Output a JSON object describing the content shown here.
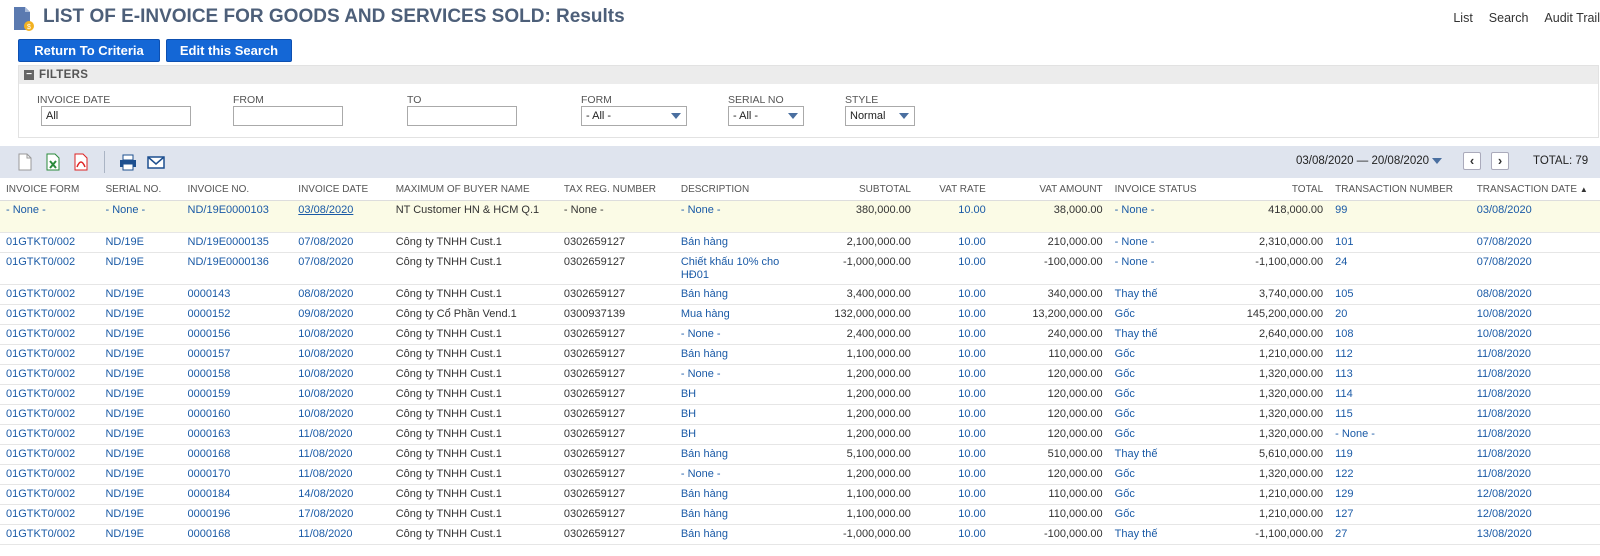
{
  "header": {
    "title": "LIST OF E-INVOICE FOR GOODS AND SERVICES SOLD: Results",
    "links": [
      "List",
      "Search",
      "Audit Trail"
    ]
  },
  "buttons": {
    "return": "Return To Criteria",
    "edit": "Edit this Search"
  },
  "filters": {
    "title": "FILTERS",
    "invoice_date": {
      "label": "INVOICE DATE",
      "value": "All"
    },
    "from": {
      "label": "FROM",
      "value": ""
    },
    "to": {
      "label": "TO",
      "value": ""
    },
    "form": {
      "label": "FORM",
      "value": "- All -"
    },
    "serial_no": {
      "label": "SERIAL NO",
      "value": "- All -"
    },
    "style": {
      "label": "STYLE",
      "value": "Normal"
    }
  },
  "toolbar": {
    "date_range": "03/08/2020 — 20/08/2020",
    "total": "TOTAL: 79",
    "prev": "‹",
    "next": "›"
  },
  "table": {
    "columns": [
      "INVOICE FORM",
      "SERIAL NO.",
      "INVOICE NO.",
      "INVOICE DATE",
      "MAXIMUM OF BUYER NAME",
      "TAX REG. NUMBER",
      "DESCRIPTION",
      "SUBTOTAL",
      "VAT RATE",
      "VAT AMOUNT",
      "INVOICE STATUS",
      "TOTAL",
      "TRANSACTION NUMBER",
      "TRANSACTION DATE"
    ],
    "sort_indicator": "▲",
    "rows": [
      [
        "- None -",
        "- None -",
        "ND/19E0000103",
        "03/08/2020",
        "NT Customer HN & HCM Q.1",
        "- None -",
        "- None -",
        "380,000.00",
        "10.00",
        "38,000.00",
        "- None -",
        "418,000.00",
        "99",
        "03/08/2020"
      ],
      [
        "01GTKT0/002",
        "ND/19E",
        "ND/19E0000135",
        "07/08/2020",
        "Công ty TNHH Cust.1",
        "0302659127",
        "Bán hàng",
        "2,100,000.00",
        "10.00",
        "210,000.00",
        "- None -",
        "2,310,000.00",
        "101",
        "07/08/2020"
      ],
      [
        "01GTKT0/002",
        "ND/19E",
        "ND/19E0000136",
        "07/08/2020",
        "Công ty TNHH Cust.1",
        "0302659127",
        "Chiết khấu 10% cho HĐ01",
        "-1,000,000.00",
        "10.00",
        "-100,000.00",
        "- None -",
        "-1,100,000.00",
        "24",
        "07/08/2020"
      ],
      [
        "01GTKT0/002",
        "ND/19E",
        "0000143",
        "08/08/2020",
        "Công ty TNHH Cust.1",
        "0302659127",
        "Bán hàng",
        "3,400,000.00",
        "10.00",
        "340,000.00",
        "Thay thế",
        "3,740,000.00",
        "105",
        "08/08/2020"
      ],
      [
        "01GTKT0/002",
        "ND/19E",
        "0000152",
        "09/08/2020",
        "Công ty Cổ Phần Vend.1",
        "0300937139",
        "Mua hàng",
        "132,000,000.00",
        "10.00",
        "13,200,000.00",
        "Gốc",
        "145,200,000.00",
        "20",
        "10/08/2020"
      ],
      [
        "01GTKT0/002",
        "ND/19E",
        "0000156",
        "10/08/2020",
        "Công ty TNHH Cust.1",
        "0302659127",
        "- None -",
        "2,400,000.00",
        "10.00",
        "240,000.00",
        "Thay thế",
        "2,640,000.00",
        "108",
        "10/08/2020"
      ],
      [
        "01GTKT0/002",
        "ND/19E",
        "0000157",
        "10/08/2020",
        "Công ty TNHH Cust.1",
        "0302659127",
        "Bán hàng",
        "1,100,000.00",
        "10.00",
        "110,000.00",
        "Gốc",
        "1,210,000.00",
        "112",
        "11/08/2020"
      ],
      [
        "01GTKT0/002",
        "ND/19E",
        "0000158",
        "10/08/2020",
        "Công ty TNHH Cust.1",
        "0302659127",
        "- None -",
        "1,200,000.00",
        "10.00",
        "120,000.00",
        "Gốc",
        "1,320,000.00",
        "113",
        "11/08/2020"
      ],
      [
        "01GTKT0/002",
        "ND/19E",
        "0000159",
        "10/08/2020",
        "Công ty TNHH Cust.1",
        "0302659127",
        "BH",
        "1,200,000.00",
        "10.00",
        "120,000.00",
        "Gốc",
        "1,320,000.00",
        "114",
        "11/08/2020"
      ],
      [
        "01GTKT0/002",
        "ND/19E",
        "0000160",
        "10/08/2020",
        "Công ty TNHH Cust.1",
        "0302659127",
        "BH",
        "1,200,000.00",
        "10.00",
        "120,000.00",
        "Gốc",
        "1,320,000.00",
        "115",
        "11/08/2020"
      ],
      [
        "01GTKT0/002",
        "ND/19E",
        "0000163",
        "11/08/2020",
        "Công ty TNHH Cust.1",
        "0302659127",
        "BH",
        "1,200,000.00",
        "10.00",
        "120,000.00",
        "Gốc",
        "1,320,000.00",
        "- None -",
        "11/08/2020"
      ],
      [
        "01GTKT0/002",
        "ND/19E",
        "0000168",
        "11/08/2020",
        "Công ty TNHH Cust.1",
        "0302659127",
        "Bán hàng",
        "5,100,000.00",
        "10.00",
        "510,000.00",
        "Thay thế",
        "5,610,000.00",
        "119",
        "11/08/2020"
      ],
      [
        "01GTKT0/002",
        "ND/19E",
        "0000170",
        "11/08/2020",
        "Công ty TNHH Cust.1",
        "0302659127",
        "- None -",
        "1,200,000.00",
        "10.00",
        "120,000.00",
        "Gốc",
        "1,320,000.00",
        "122",
        "11/08/2020"
      ],
      [
        "01GTKT0/002",
        "ND/19E",
        "0000184",
        "14/08/2020",
        "Công ty TNHH Cust.1",
        "0302659127",
        "Bán hàng",
        "1,100,000.00",
        "10.00",
        "110,000.00",
        "Gốc",
        "1,210,000.00",
        "129",
        "12/08/2020"
      ],
      [
        "01GTKT0/002",
        "ND/19E",
        "0000196",
        "17/08/2020",
        "Công ty TNHH Cust.1",
        "0302659127",
        "Bán hàng",
        "1,100,000.00",
        "10.00",
        "110,000.00",
        "Gốc",
        "1,210,000.00",
        "127",
        "12/08/2020"
      ],
      [
        "01GTKT0/002",
        "ND/19E",
        "0000168",
        "11/08/2020",
        "Công ty TNHH Cust.1",
        "0302659127",
        "Bán hàng",
        "-1,000,000.00",
        "10.00",
        "-100,000.00",
        "Thay thế",
        "-1,100,000.00",
        "27",
        "13/08/2020"
      ]
    ]
  },
  "colors": {
    "link": "#1a5aa6",
    "button": "#1467d6",
    "title": "#4d5f79",
    "toolbar_bg": "#dfe4ee",
    "highlight_row": "#fbfbe6"
  }
}
